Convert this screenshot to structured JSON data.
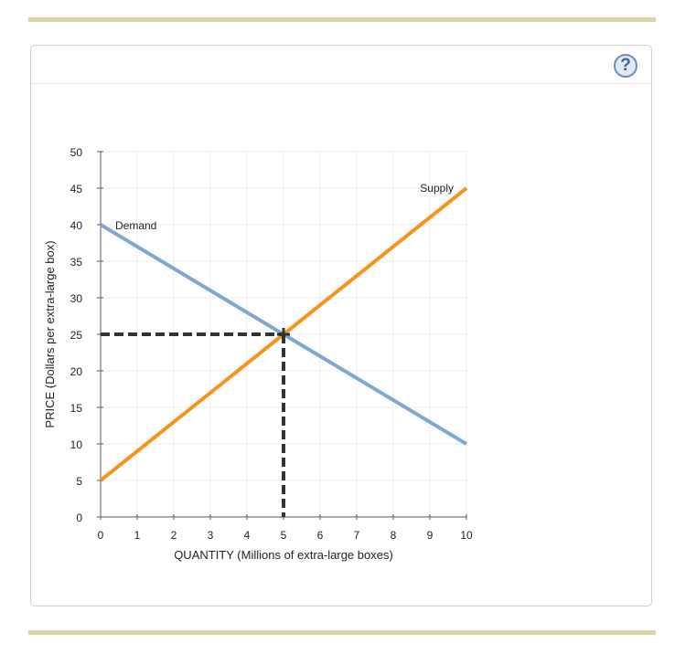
{
  "help_label": "?",
  "chart_data": {
    "type": "line",
    "xlabel": "QUANTITY (Millions of extra-large boxes)",
    "ylabel": "PRICE (Dollars per extra-large box)",
    "xlim": [
      0,
      10
    ],
    "ylim": [
      0,
      50
    ],
    "xticks": [
      0,
      1,
      2,
      3,
      4,
      5,
      6,
      7,
      8,
      9,
      10
    ],
    "yticks": [
      0,
      5,
      10,
      15,
      20,
      25,
      30,
      35,
      40,
      45,
      50
    ],
    "grid": true,
    "series": [
      {
        "name": "Demand",
        "color": "#7fa8d1",
        "x": [
          0,
          10
        ],
        "y": [
          40,
          10
        ]
      },
      {
        "name": "Supply",
        "color": "#f7931d",
        "x": [
          0,
          10
        ],
        "y": [
          5,
          45
        ]
      }
    ],
    "equilibrium": {
      "x": 5,
      "y": 25,
      "color": "#333333"
    }
  }
}
